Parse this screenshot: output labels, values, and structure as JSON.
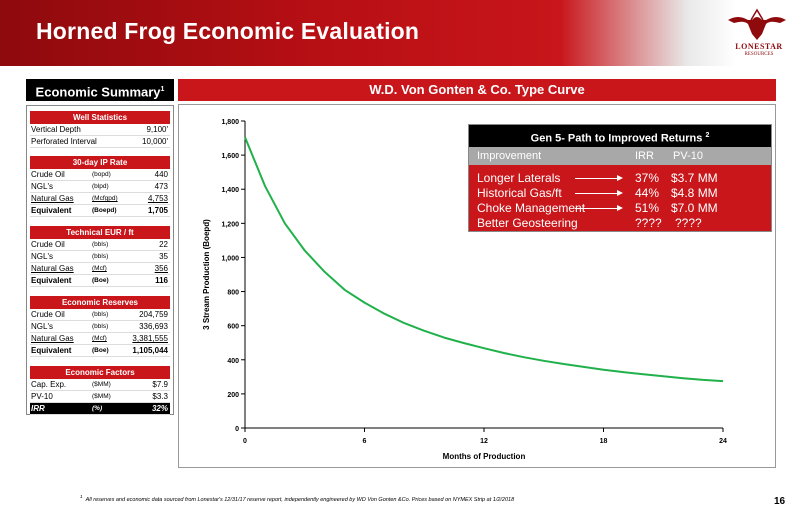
{
  "header": {
    "title": "Horned Frog Economic Evaluation",
    "logo_text": "LONESTAR",
    "logo_sub": "RESOURCES"
  },
  "summary": {
    "title": "Economic Summary",
    "title_sup": "1",
    "well_statistics": {
      "title": "Well Statistics",
      "rows": [
        {
          "label": "Vertical Depth",
          "unit": "",
          "value": "9,100'"
        },
        {
          "label": "Perforated Interval",
          "unit": "",
          "value": "10,000'"
        }
      ]
    },
    "ip_rate": {
      "title": "30-day IP Rate",
      "rows": [
        {
          "label": "Crude Oil",
          "unit": "(bopd)",
          "value": "440"
        },
        {
          "label": "NGL's",
          "unit": "(blpd)",
          "value": "473"
        },
        {
          "label": "Natural Gas",
          "unit": "(Mcfgpd)",
          "value": "4,753"
        },
        {
          "label": "Equivalent",
          "unit": "(Boepd)",
          "value": "1,705"
        }
      ]
    },
    "eur": {
      "title": "Technical EUR / ft",
      "rows": [
        {
          "label": "Crude Oil",
          "unit": "(bbls)",
          "value": "22"
        },
        {
          "label": "NGL's",
          "unit": "(bbls)",
          "value": "35"
        },
        {
          "label": "Natural Gas",
          "unit": "(Mcf)",
          "value": "356"
        },
        {
          "label": "Equivalent",
          "unit": "(Boe)",
          "value": "116"
        }
      ]
    },
    "reserves": {
      "title": "Economic Reserves",
      "rows": [
        {
          "label": "Crude Oil",
          "unit": "(bbls)",
          "value": "204,759"
        },
        {
          "label": "NGL's",
          "unit": "(bbls)",
          "value": "336,693"
        },
        {
          "label": "Natural Gas",
          "unit": "(Mcf)",
          "value": "3,381,555"
        },
        {
          "label": "Equivalent",
          "unit": "(Boe)",
          "value": "1,105,044"
        }
      ]
    },
    "factors": {
      "title": "Economic Factors",
      "rows": [
        {
          "label": "Cap. Exp.",
          "unit": "($MM)",
          "value": "$7.9"
        },
        {
          "label": "PV-10",
          "unit": "($MM)",
          "value": "$3.3"
        },
        {
          "label": "IRR",
          "unit": "(%)",
          "value": "32%"
        }
      ]
    }
  },
  "chart_section": {
    "title": "W.D. Von Gonten & Co. Type Curve"
  },
  "callout": {
    "title": "Gen 5- Path to Improved Returns",
    "title_sup": "2",
    "columns": [
      "Improvement",
      "IRR",
      "PV-10"
    ],
    "rows": [
      {
        "label": "Longer Laterals",
        "irr": "37%",
        "pv10": "$3.7 MM"
      },
      {
        "label": "Historical Gas/ft",
        "irr": "44%",
        "pv10": "$4.8 MM"
      },
      {
        "label": "Choke Management",
        "irr": "51%",
        "pv10": "$7.0 MM"
      },
      {
        "label": "Better Geosteering",
        "irr": "????",
        "pv10": "????"
      }
    ]
  },
  "chart_data": {
    "type": "line",
    "xlabel": "Months of Production",
    "ylabel": "3 Stream Production (Boepd)",
    "xlim": [
      0,
      24
    ],
    "ylim": [
      0,
      1800
    ],
    "xticks": [
      0,
      6,
      12,
      18,
      24
    ],
    "yticks": [
      0,
      200,
      400,
      600,
      800,
      1000,
      1200,
      1400,
      1600,
      1800
    ],
    "ytick_labels": [
      "0",
      "200",
      "400",
      "600",
      "800",
      "1,000",
      "1,200",
      "1,400",
      "1,600",
      "1,800"
    ],
    "grid": false,
    "series": [
      {
        "color": "#21b14b",
        "x": [
          0,
          1,
          2,
          3,
          4,
          5,
          6,
          7,
          8,
          9,
          10,
          11,
          12,
          13,
          14,
          15,
          16,
          17,
          18,
          19,
          20,
          21,
          22,
          23,
          24
        ],
        "y": [
          1705,
          1420,
          1200,
          1040,
          915,
          810,
          735,
          670,
          615,
          570,
          530,
          498,
          468,
          440,
          415,
          394,
          375,
          358,
          342,
          328,
          315,
          303,
          292,
          282,
          275
        ]
      }
    ]
  },
  "footnote": {
    "sup": "1",
    "text": "All reserves and economic data sourced from Lonestar's 12/31/17 reserve report, independently engineered by WD Von Gonten &Co. Prices based on NYMEX Strip at 1/2/2018"
  },
  "page_number": "16"
}
